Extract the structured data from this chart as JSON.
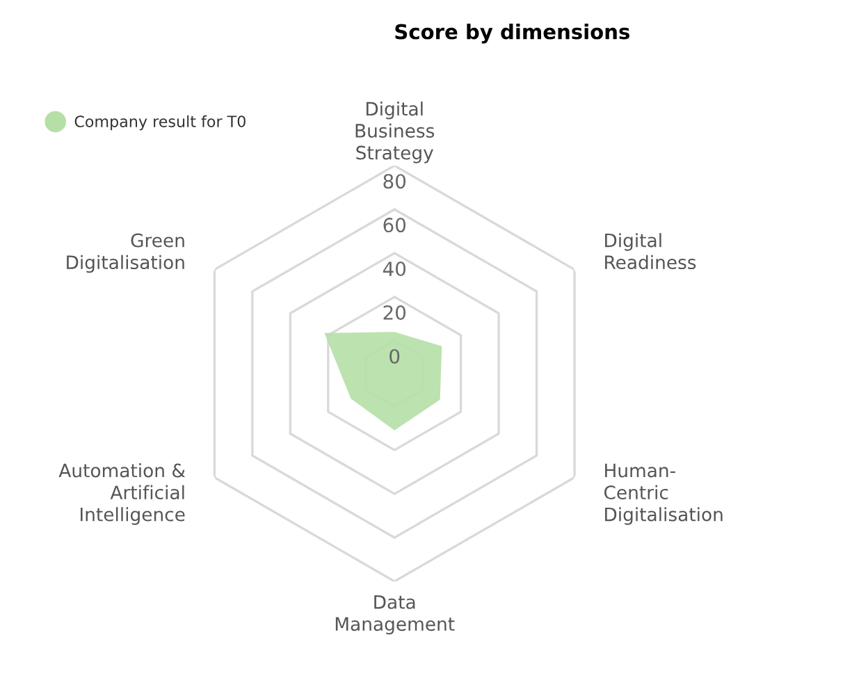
{
  "chart_data": {
    "type": "radar",
    "title": "Score by dimensions",
    "categories": [
      "Digital\nBusiness\nStrategy",
      "Digital\nReadiness",
      "Human-\nCentric\nDigitalisation",
      "Data\nManagement",
      "Automation &\nArtificial\nIntelligence",
      "Green\nDigitalisation"
    ],
    "series": [
      {
        "name": "Company result for T0",
        "color": "#b5dfa6",
        "values": [
          4,
          10,
          9,
          11,
          8,
          22
        ]
      }
    ],
    "ylim": [
      -15,
      80
    ],
    "yticks": [
      0,
      20,
      40,
      60,
      80
    ],
    "grid": true,
    "legend": "top left",
    "marker": "none"
  }
}
